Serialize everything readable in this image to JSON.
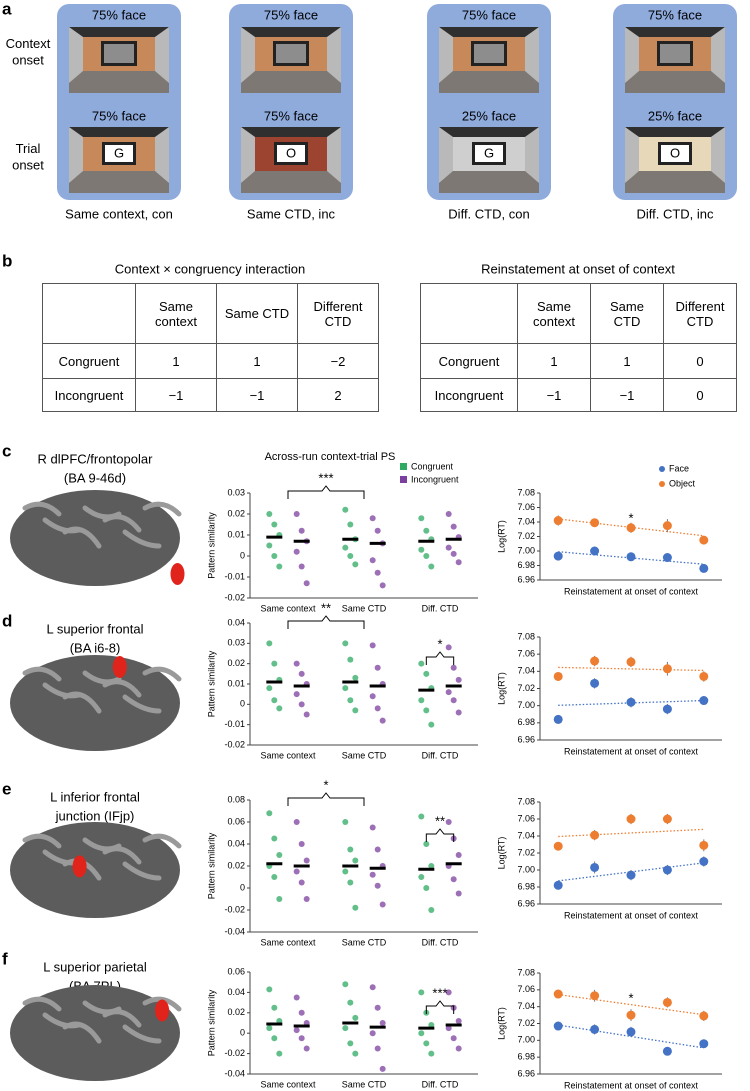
{
  "panel_a": {
    "letter": "a",
    "row_labels": [
      "Context onset",
      "Trial onset"
    ],
    "columns": [
      {
        "context_label": "75% face",
        "trial_label": "75% face",
        "screen": "G",
        "caption": "Same context, con"
      },
      {
        "context_label": "75% face",
        "trial_label": "75% face",
        "screen": "O",
        "caption": "Same CTD, inc"
      },
      {
        "context_label": "75% face",
        "trial_label": "25% face",
        "screen": "G",
        "caption": "Diff. CTD, con"
      },
      {
        "context_label": "75% face",
        "trial_label": "25% face",
        "screen": "O",
        "caption": "Diff. CTD, inc"
      }
    ]
  },
  "panel_b": {
    "letter": "b",
    "tables": [
      {
        "title": "Context × congruency interaction",
        "columns": [
          "Same context",
          "Same CTD",
          "Different CTD"
        ],
        "rows": [
          {
            "label": "Congruent",
            "cells": [
              "1",
              "1",
              "−2"
            ]
          },
          {
            "label": "Incongruent",
            "cells": [
              "−1",
              "−1",
              "2"
            ]
          }
        ]
      },
      {
        "title": "Reinstatement at onset of context",
        "columns": [
          "Same context",
          "Same CTD",
          "Different CTD"
        ],
        "rows": [
          {
            "label": "Congruent",
            "cells": [
              "1",
              "1",
              "0"
            ]
          },
          {
            "label": "Incongruent",
            "cells": [
              "−1",
              "−1",
              "0"
            ]
          }
        ]
      }
    ]
  },
  "panels": [
    {
      "letter": "c",
      "region": [
        "R dlPFC/frontopolar",
        "(BA 9-46d)"
      ]
    },
    {
      "letter": "d",
      "region": [
        "L superior frontal",
        "(BA i6-8)"
      ]
    },
    {
      "letter": "e",
      "region": [
        "L inferior frontal",
        "junction (IFjp)"
      ]
    },
    {
      "letter": "f",
      "region": [
        "L superior parietal",
        "(BA 7PL)"
      ]
    }
  ],
  "chart_data": [
    {
      "type": "strip",
      "title": "Across-run context-trial PS",
      "y_label": "Pattern similarity",
      "categories": [
        "Same context",
        "Same CTD",
        "Diff. CTD"
      ],
      "series": [
        {
          "name": "Congruent",
          "color": "#2eaa63",
          "values": [
            [
              0.02,
              0.015,
              0.01,
              0.005,
              0,
              -0.005
            ],
            [
              0.022,
              0.015,
              0.008,
              0.004,
              0,
              -0.004
            ],
            [
              0.018,
              0.012,
              0.008,
              0.003,
              0,
              -0.005
            ]
          ],
          "means": [
            0.009,
            0.008,
            0.007
          ]
        },
        {
          "name": "Incongruent",
          "color": "#7b3f9e",
          "values": [
            [
              0.02,
              0.012,
              0.007,
              0.002,
              -0.005,
              -0.013
            ],
            [
              0.018,
              0.012,
              0.006,
              -0.002,
              -0.008,
              -0.014
            ],
            [
              0.02,
              0.014,
              0.009,
              0.004,
              0.001,
              -0.003
            ]
          ],
          "means": [
            0.007,
            0.006,
            0.008
          ]
        }
      ],
      "ylim": [
        -0.02,
        0.03
      ],
      "yticks": [
        -0.02,
        -0.01,
        0,
        0.01,
        0.02,
        0.03
      ],
      "annotations": [
        {
          "text": "***",
          "from": "Same context",
          "to": "Same CTD"
        }
      ]
    },
    {
      "type": "scatter",
      "y_label": "Log(RT)",
      "x_label": "Reinstatement at onset of context",
      "categories": [
        null,
        null,
        null,
        null,
        null
      ],
      "series": [
        {
          "name": "Face",
          "color": "#4472c4",
          "values": [
            6.993,
            7.0,
            6.992,
            6.991,
            6.976
          ],
          "errors": [
            0.006,
            0.006,
            0.006,
            0.005,
            0.005
          ]
        },
        {
          "name": "Object",
          "color": "#ed7d31",
          "values": [
            7.042,
            7.039,
            7.032,
            7.035,
            7.015
          ],
          "errors": [
            0.007,
            0.005,
            0.007,
            0.009,
            0.005
          ]
        }
      ],
      "ylim": [
        6.96,
        7.08
      ],
      "yticks": [
        6.96,
        6.98,
        {
          "value": 7,
          "label": "7.00"
        },
        7.02,
        7.04,
        7.06,
        7.08
      ],
      "annotations": [
        {
          "text": "*"
        }
      ]
    },
    {
      "type": "strip",
      "y_label": "Pattern similarity",
      "categories": [
        "Same context",
        "Same CTD",
        "Diff. CTD"
      ],
      "series": [
        {
          "color": "#2eaa63",
          "values": [
            [
              0.03,
              0.02,
              0.012,
              0.008,
              0.002,
              -0.002
            ],
            [
              0.03,
              0.022,
              0.013,
              0.008,
              0.002,
              -0.003
            ],
            [
              0.02,
              0.015,
              0.008,
              0.002,
              -0.003,
              -0.01
            ]
          ],
          "means": [
            0.011,
            0.011,
            0.007
          ]
        },
        {
          "color": "#7b3f9e",
          "values": [
            [
              0.02,
              0.015,
              0.01,
              0.005,
              0,
              -0.005
            ],
            [
              0.029,
              0.018,
              0.01,
              0.004,
              -0.002,
              -0.008
            ],
            [
              0.028,
              0.018,
              0.012,
              0.006,
              0.002,
              -0.004
            ]
          ],
          "means": [
            0.009,
            0.009,
            0.009
          ]
        }
      ],
      "ylim": [
        -0.02,
        0.04
      ],
      "yticks": [
        -0.02,
        -0.01,
        0,
        0.01,
        0.02,
        0.03,
        0.04
      ],
      "annotations": [
        {
          "text": "**",
          "from": "Same context",
          "to": "Same CTD"
        },
        {
          "text": "*",
          "from": "Diff. CTD",
          "to": "Diff. CTD"
        }
      ]
    },
    {
      "type": "scatter",
      "y_label": "Log(RT)",
      "x_label": "Reinstatement at onset of context",
      "categories": [
        null,
        null,
        null,
        null,
        null
      ],
      "series": [
        {
          "color": "#4472c4",
          "values": [
            6.984,
            7.026,
            7.004,
            6.996,
            7.006
          ],
          "errors": [
            0.005,
            0.006,
            0.006,
            0.006,
            0.005
          ]
        },
        {
          "color": "#ed7d31",
          "values": [
            7.034,
            7.052,
            7.051,
            7.043,
            7.034
          ],
          "errors": [
            0.005,
            0.006,
            0.006,
            0.008,
            0.006
          ]
        }
      ],
      "ylim": [
        6.96,
        7.08
      ],
      "yticks": [
        6.96,
        6.98,
        {
          "value": 7,
          "label": "7.00"
        },
        7.02,
        7.04,
        7.06,
        7.08
      ]
    },
    {
      "type": "strip",
      "y_label": "Pattern similarity",
      "categories": [
        "Same context",
        "Same CTD",
        "Diff. CTD"
      ],
      "series": [
        {
          "color": "#2eaa63",
          "values": [
            [
              0.068,
              0.045,
              0.03,
              0.02,
              0.01,
              -0.01
            ],
            [
              0.06,
              0.035,
              0.025,
              0.015,
              0.005,
              -0.018
            ],
            [
              0.065,
              0.04,
              0.02,
              0.01,
              0,
              -0.02
            ]
          ],
          "means": [
            0.022,
            0.02,
            0.017
          ]
        },
        {
          "color": "#7b3f9e",
          "values": [
            [
              0.06,
              0.04,
              0.025,
              0.015,
              0.005,
              -0.01
            ],
            [
              0.055,
              0.035,
              0.02,
              0.012,
              0.002,
              -0.015
            ],
            [
              0.06,
              0.045,
              0.03,
              0.02,
              0.008,
              -0.005
            ]
          ],
          "means": [
            0.02,
            0.018,
            0.022
          ]
        }
      ],
      "ylim": [
        -0.04,
        0.08
      ],
      "yticks": [
        -0.04,
        -0.02,
        0,
        0.02,
        0.04,
        0.06,
        0.08
      ],
      "annotations": [
        {
          "text": "*",
          "from": "Same context",
          "to": "Same CTD"
        },
        {
          "text": "**",
          "from": "Diff. CTD",
          "to": "Diff. CTD"
        }
      ]
    },
    {
      "type": "scatter",
      "y_label": "Log(RT)",
      "x_label": "Reinstatement at onset of context",
      "categories": [
        null,
        null,
        null,
        null,
        null
      ],
      "series": [
        {
          "color": "#4472c4",
          "values": [
            6.982,
            7.003,
            6.994,
            7.0,
            7.01
          ],
          "errors": [
            0.005,
            0.007,
            0.006,
            0.006,
            0.006
          ]
        },
        {
          "color": "#ed7d31",
          "values": [
            7.028,
            7.041,
            7.06,
            7.06,
            7.029
          ],
          "errors": [
            0.005,
            0.006,
            0.006,
            0.006,
            0.007
          ]
        }
      ],
      "ylim": [
        6.96,
        7.08
      ],
      "yticks": [
        6.96,
        6.98,
        {
          "value": 7,
          "label": "7.00"
        },
        7.02,
        7.04,
        7.06,
        7.08
      ]
    },
    {
      "type": "strip",
      "y_label": "Pattern similarity",
      "categories": [
        "Same context",
        "Same CTD",
        "Diff. CTD"
      ],
      "series": [
        {
          "color": "#2eaa63",
          "values": [
            [
              0.043,
              0.025,
              0.012,
              0.005,
              -0.005,
              -0.02
            ],
            [
              0.048,
              0.03,
              0.015,
              0.005,
              -0.01,
              -0.02
            ],
            [
              0.04,
              0.02,
              0.008,
              0,
              -0.01,
              -0.02
            ]
          ],
          "means": [
            0.009,
            0.01,
            0.005
          ]
        },
        {
          "color": "#7b3f9e",
          "values": [
            [
              0.035,
              0.02,
              0.01,
              0.003,
              -0.005,
              -0.015
            ],
            [
              0.045,
              0.025,
              0.01,
              0,
              -0.015,
              -0.035
            ],
            [
              0.04,
              0.025,
              0.012,
              0.005,
              -0.005,
              -0.015
            ]
          ],
          "means": [
            0.007,
            0.006,
            0.008
          ]
        }
      ],
      "ylim": [
        -0.04,
        0.06
      ],
      "yticks": [
        -0.04,
        -0.02,
        0,
        0.02,
        0.04,
        0.06
      ],
      "annotations": [
        {
          "text": "***",
          "from": "Diff. CTD",
          "to": "Diff. CTD"
        }
      ]
    },
    {
      "type": "scatter",
      "y_label": "Log(RT)",
      "x_label": "Reinstatement at onset of context",
      "categories": [
        null,
        null,
        null,
        null,
        null
      ],
      "series": [
        {
          "color": "#4472c4",
          "values": [
            7.017,
            7.013,
            7.01,
            6.987,
            6.996
          ],
          "errors": [
            0.005,
            0.006,
            0.006,
            0.005,
            0.005
          ]
        },
        {
          "color": "#ed7d31",
          "values": [
            7.055,
            7.053,
            7.03,
            7.045,
            7.029
          ],
          "errors": [
            0.005,
            0.007,
            0.007,
            0.006,
            0.006
          ]
        }
      ],
      "ylim": [
        6.96,
        7.08
      ],
      "yticks": [
        6.96,
        6.98,
        {
          "value": 7,
          "label": "7.00"
        },
        7.02,
        7.04,
        7.06,
        7.08
      ],
      "annotations": [
        {
          "text": "*"
        }
      ]
    }
  ]
}
